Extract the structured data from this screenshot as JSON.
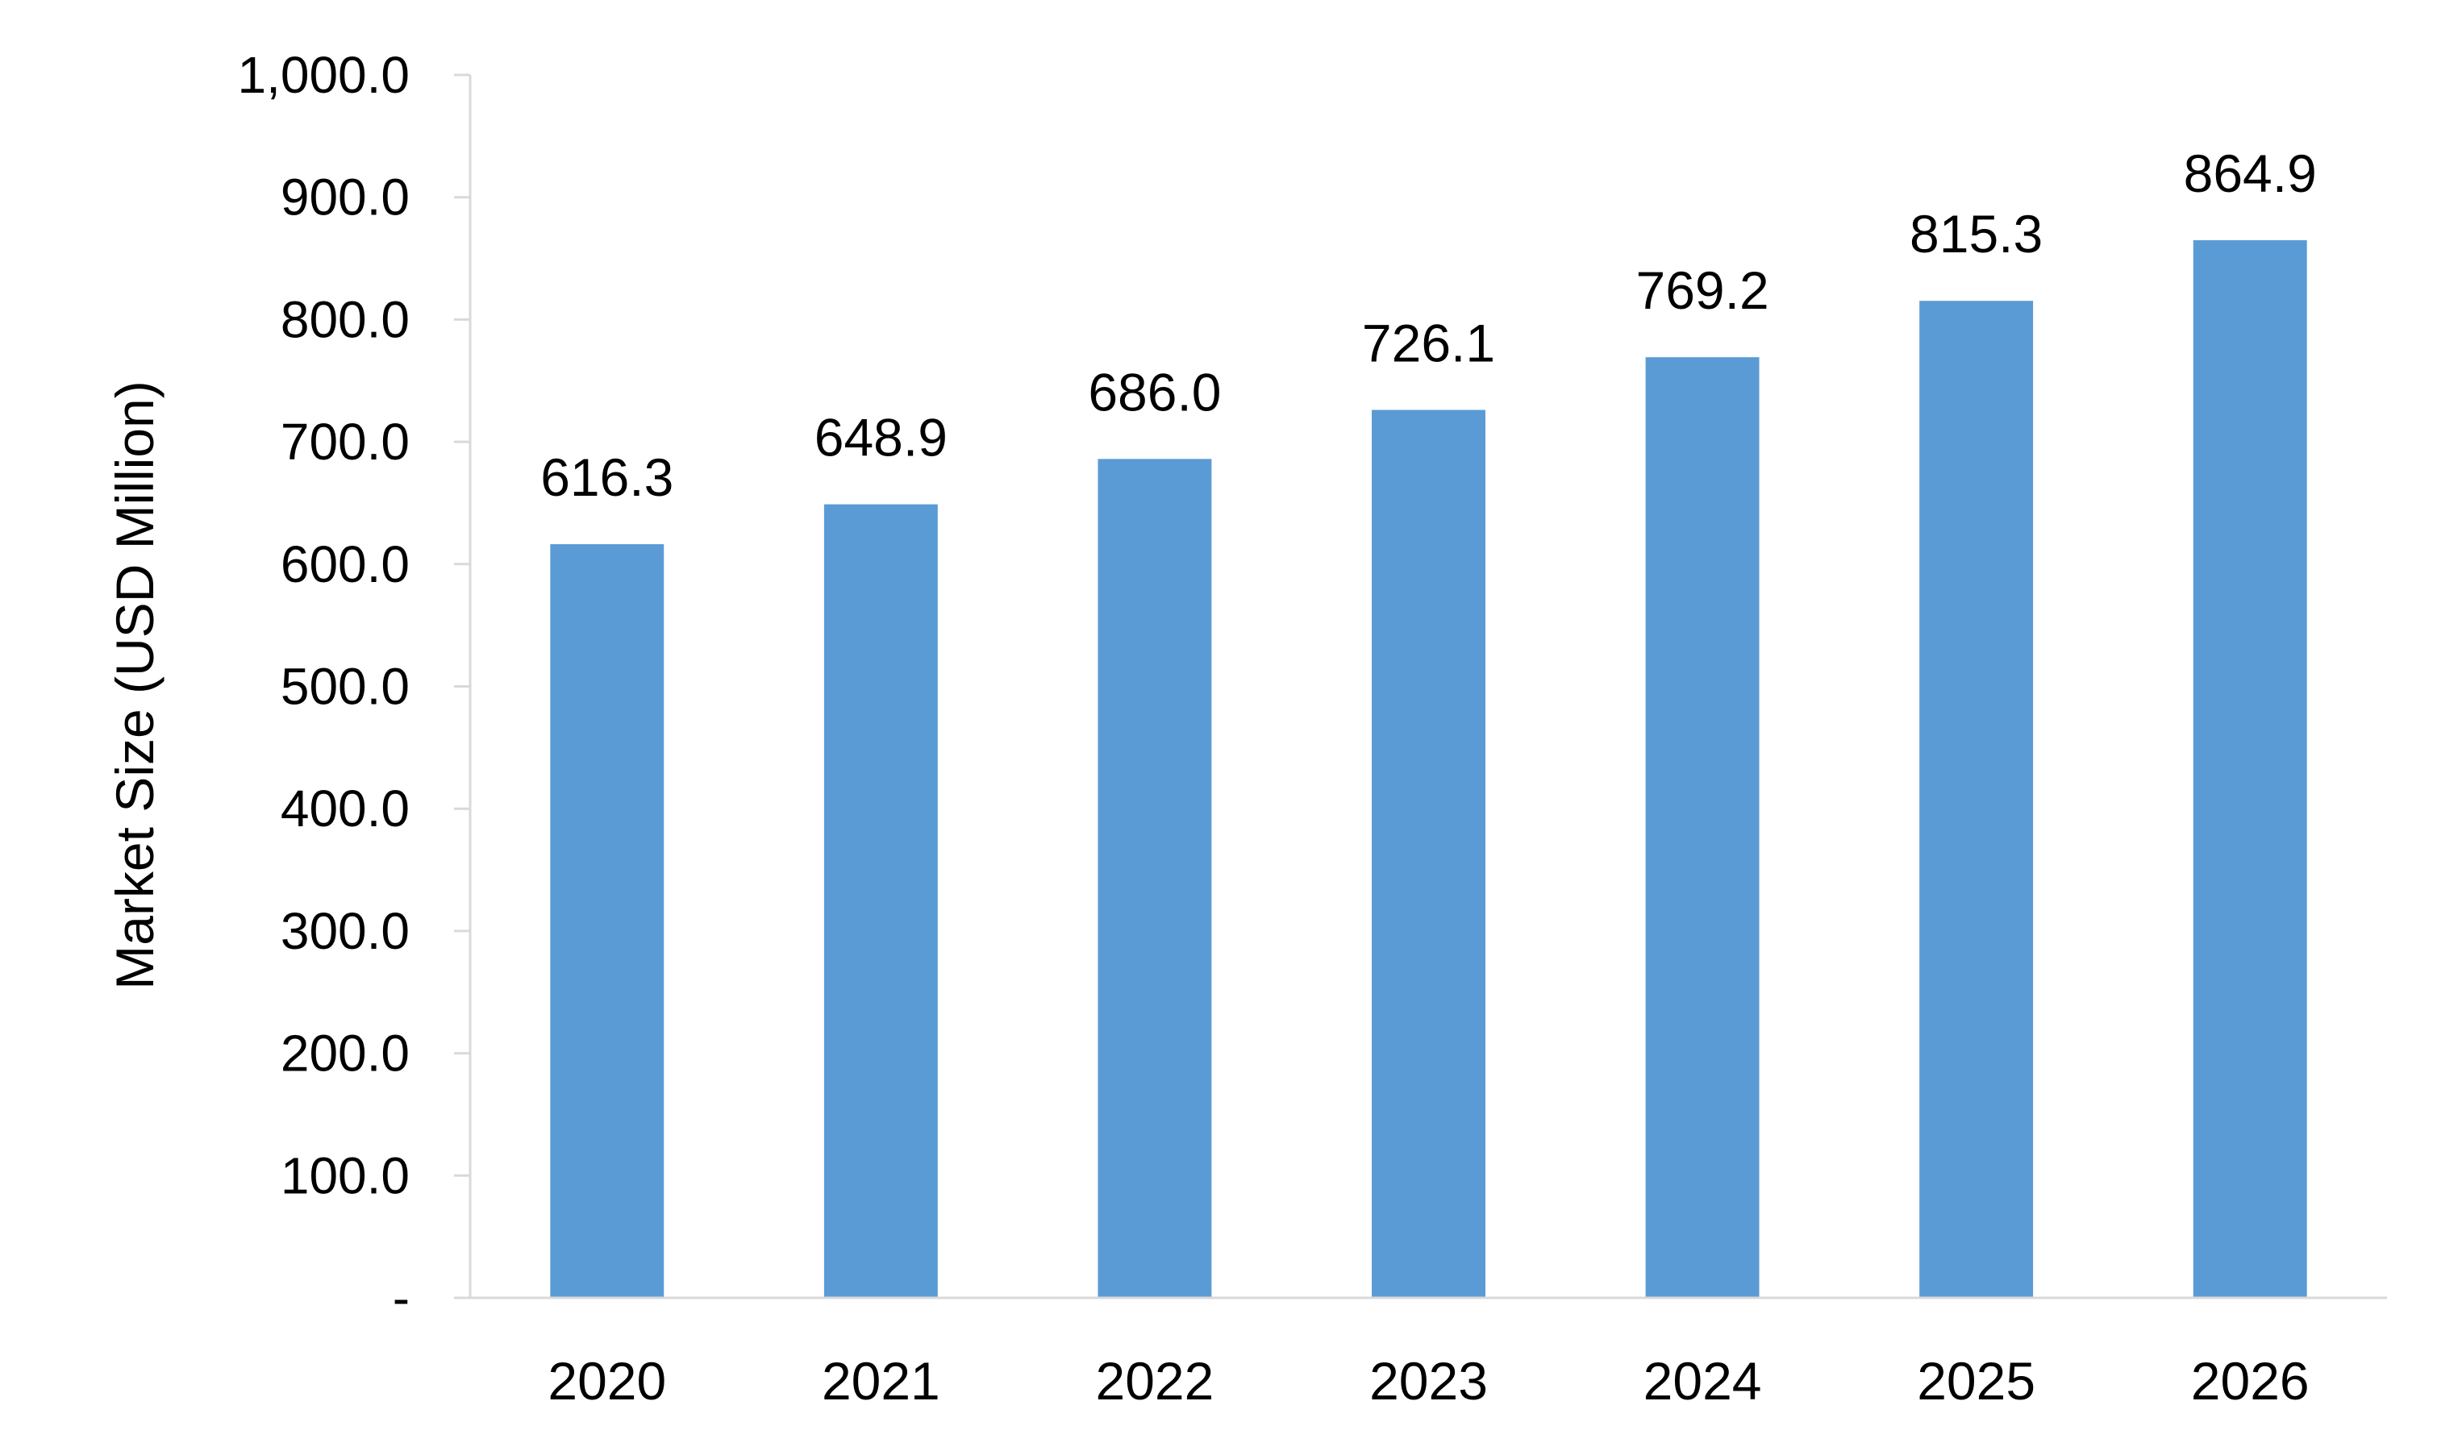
{
  "chart_data": {
    "type": "bar",
    "categories": [
      "2020",
      "2021",
      "2022",
      "2023",
      "2024",
      "2025",
      "2026"
    ],
    "values": [
      616.3,
      648.9,
      686.0,
      726.1,
      769.2,
      815.3,
      864.9
    ],
    "data_labels": [
      "616.3",
      "648.9",
      "686.0",
      "726.1",
      "769.2",
      "815.3",
      "864.9"
    ],
    "title": "",
    "xlabel": "",
    "ylabel": "Market Size (USD Million)",
    "ylim": [
      0,
      1000
    ],
    "y_ticks": [
      0,
      100,
      200,
      300,
      400,
      500,
      600,
      700,
      800,
      900,
      1000
    ],
    "y_tick_labels": [
      "-",
      "100.0",
      "200.0",
      "300.0",
      "400.0",
      "500.0",
      "600.0",
      "700.0",
      "800.0",
      "900.0",
      "1,000.0"
    ],
    "grid": false,
    "legend": "none",
    "bar_color": "#5B9BD5",
    "axis_color": "#D9D9D9"
  }
}
